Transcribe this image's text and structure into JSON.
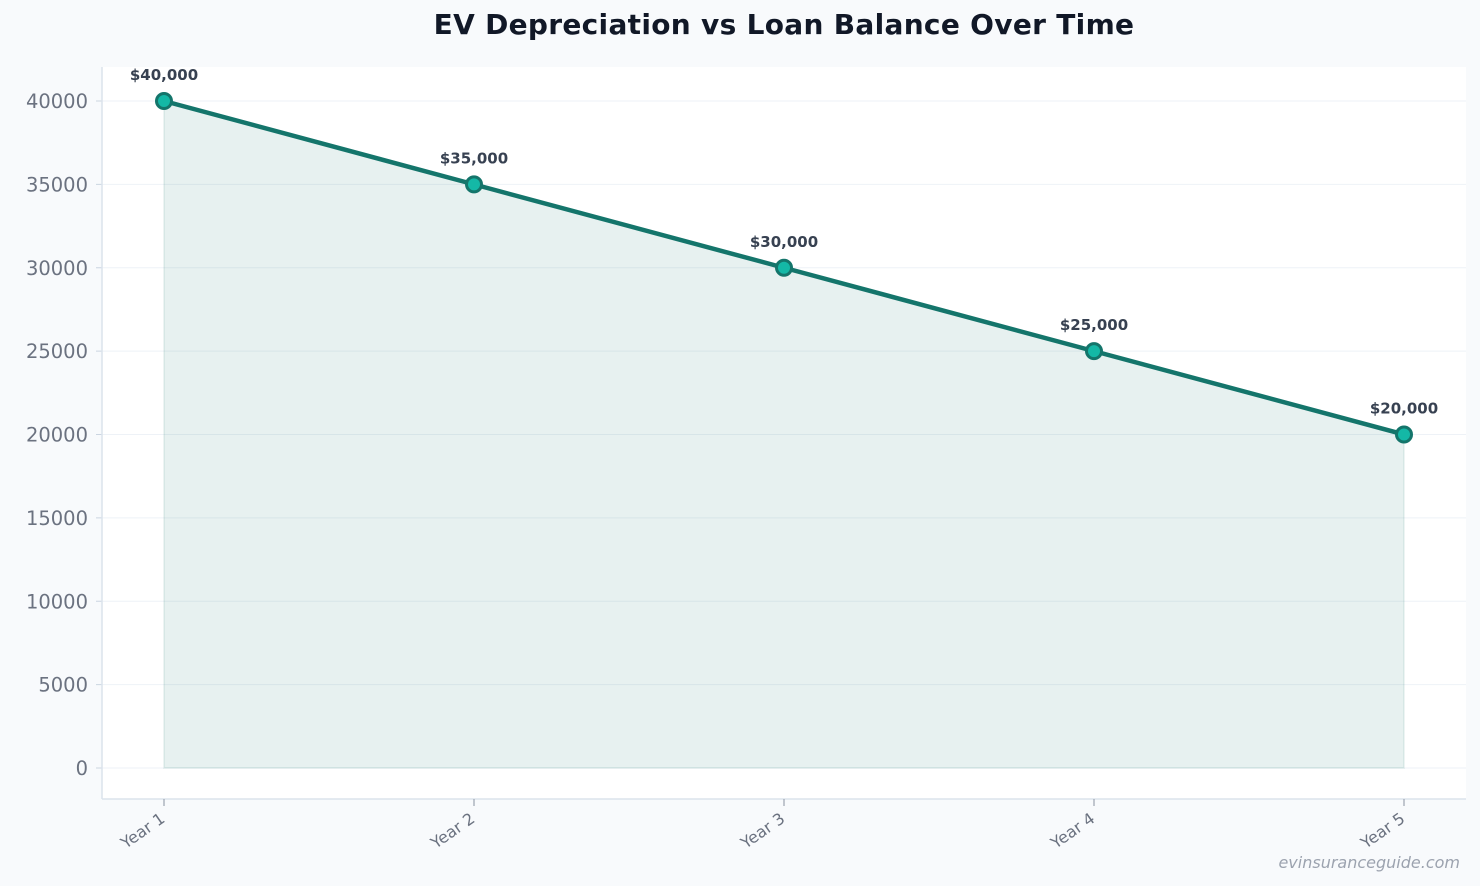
{
  "chart_data": {
    "type": "area",
    "title": "EV Depreciation vs Loan Balance Over Time",
    "categories": [
      "Year 1",
      "Year 2",
      "Year 3",
      "Year 4",
      "Year 5"
    ],
    "series": [
      {
        "values": [
          40000,
          35000,
          30000,
          25000,
          20000
        ]
      }
    ],
    "data_labels": [
      "$40,000",
      "$35,000",
      "$30,000",
      "$25,000",
      "$20,000"
    ],
    "y_ticks": [
      "0",
      "5000",
      "10000",
      "15000",
      "20000",
      "25000",
      "30000",
      "35000",
      "40000"
    ],
    "ylim": [
      0,
      40000
    ],
    "grid": true,
    "colors": {
      "line": "#14756b",
      "marker_fill": "#14b8a6",
      "fill": "#14756b"
    }
  },
  "watermark": "evinsuranceguide.com"
}
